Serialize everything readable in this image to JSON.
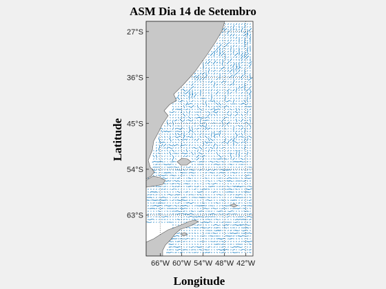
{
  "title": "ASM Dia 14 de Setembro",
  "xlabel": "Longitude",
  "ylabel": "Latitude",
  "map": {
    "extent": {
      "lon": [
        -70,
        -40
      ],
      "lat": [
        -71,
        -25
      ]
    },
    "lat_ticks": [
      {
        "value": -27,
        "label": "27°S"
      },
      {
        "value": -36,
        "label": "36°S"
      },
      {
        "value": -45,
        "label": "45°S"
      },
      {
        "value": -54,
        "label": "54°S"
      },
      {
        "value": -63,
        "label": "63°S"
      }
    ],
    "lon_ticks": [
      {
        "value": -66,
        "label": "66°W"
      },
      {
        "value": -60,
        "label": "60°W"
      },
      {
        "value": -54,
        "label": "54°W"
      },
      {
        "value": -48,
        "label": "48°W"
      },
      {
        "value": -42,
        "label": "42°W"
      }
    ],
    "land_color": "#c8c8c8",
    "ocean_color": "#ffffff",
    "vector_color": "#0072bd",
    "grid": "dotted graticule"
  }
}
